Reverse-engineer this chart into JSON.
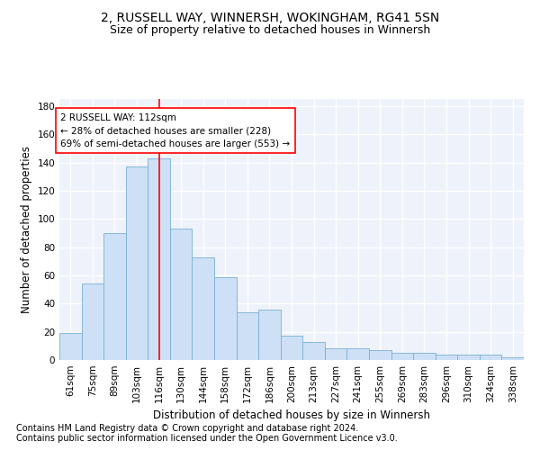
{
  "title": "2, RUSSELL WAY, WINNERSH, WOKINGHAM, RG41 5SN",
  "subtitle": "Size of property relative to detached houses in Winnersh",
  "xlabel": "Distribution of detached houses by size in Winnersh",
  "ylabel": "Number of detached properties",
  "bar_color": "#cde0f5",
  "bar_edge_color": "#7aafd4",
  "categories": [
    "61sqm",
    "75sqm",
    "89sqm",
    "103sqm",
    "116sqm",
    "130sqm",
    "144sqm",
    "158sqm",
    "172sqm",
    "186sqm",
    "200sqm",
    "213sqm",
    "227sqm",
    "241sqm",
    "255sqm",
    "269sqm",
    "283sqm",
    "296sqm",
    "310sqm",
    "324sqm",
    "338sqm"
  ],
  "values": [
    19,
    54,
    90,
    137,
    143,
    93,
    73,
    59,
    34,
    36,
    17,
    13,
    8,
    8,
    7,
    5,
    5,
    4,
    4,
    4,
    2
  ],
  "ylim": [
    0,
    185
  ],
  "yticks": [
    0,
    20,
    40,
    60,
    80,
    100,
    120,
    140,
    160,
    180
  ],
  "vline_x": 4,
  "vline_color": "red",
  "annotation_text": "2 RUSSELL WAY: 112sqm\n← 28% of detached houses are smaller (228)\n69% of semi-detached houses are larger (553) →",
  "footer1": "Contains HM Land Registry data © Crown copyright and database right 2024.",
  "footer2": "Contains public sector information licensed under the Open Government Licence v3.0.",
  "background_color": "#eef2fb",
  "grid_color": "#ffffff",
  "title_fontsize": 10,
  "subtitle_fontsize": 9,
  "xlabel_fontsize": 8.5,
  "ylabel_fontsize": 8.5,
  "tick_fontsize": 7.5,
  "annotation_fontsize": 7.5,
  "footer_fontsize": 7
}
